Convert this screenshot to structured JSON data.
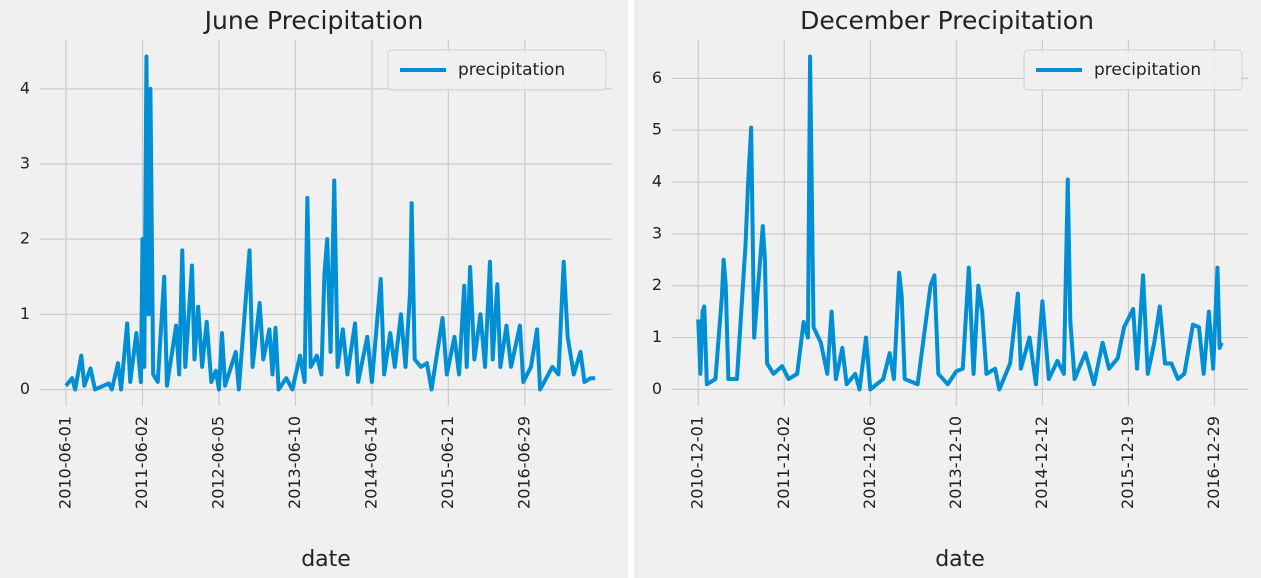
{
  "chart_data": [
    {
      "type": "line",
      "title": "June Precipitation",
      "xlabel": "date",
      "grid": true,
      "legend": "upper right",
      "xlim": [
        -85,
        1785
      ],
      "ylim": [
        -0.22,
        4.65
      ],
      "xticks": [
        {
          "value": 0,
          "label": "2010-06-01"
        },
        {
          "value": 250,
          "label": "2011-06-02"
        },
        {
          "value": 500,
          "label": "2012-06-05"
        },
        {
          "value": 750,
          "label": "2013-06-10"
        },
        {
          "value": 1000,
          "label": "2014-06-14"
        },
        {
          "value": 1250,
          "label": "2015-06-21"
        },
        {
          "value": 1500,
          "label": "2016-06-29"
        }
      ],
      "yticks": [
        0,
        1,
        2,
        3,
        4
      ],
      "x": [
        0,
        20,
        30,
        50,
        60,
        80,
        95,
        140,
        150,
        170,
        180,
        200,
        210,
        230,
        245,
        250,
        256,
        263,
        270,
        276,
        285,
        300,
        321,
        330,
        360,
        370,
        380,
        390,
        412,
        420,
        432,
        445,
        460,
        475,
        490,
        500,
        510,
        520,
        555,
        565,
        600,
        610,
        633,
        645,
        665,
        675,
        685,
        695,
        720,
        740,
        765,
        780,
        789,
        800,
        820,
        835,
        845,
        854,
        865,
        877,
        888,
        905,
        920,
        945,
        955,
        985,
        1000,
        1029,
        1040,
        1060,
        1075,
        1095,
        1110,
        1125,
        1130,
        1140,
        1160,
        1180,
        1195,
        1231,
        1245,
        1270,
        1285,
        1302,
        1310,
        1321,
        1335,
        1355,
        1370,
        1386,
        1395,
        1410,
        1420,
        1440,
        1455,
        1484,
        1495,
        1520,
        1540,
        1550,
        1590,
        1610,
        1627,
        1640,
        1660,
        1682,
        1695,
        1715,
        1730
      ],
      "series": [
        {
          "name": "precipitation",
          "color": "#008fd5",
          "values": [
            0.05,
            0.15,
            0,
            0.45,
            0.05,
            0.28,
            0,
            0.08,
            0,
            0.35,
            0,
            0.88,
            0.1,
            0.75,
            0.1,
            2.0,
            0.3,
            4.43,
            1.0,
            4.0,
            0.2,
            0.1,
            1.5,
            0.05,
            0.85,
            0.2,
            1.85,
            0.3,
            1.65,
            0.4,
            1.1,
            0.3,
            0.9,
            0.1,
            0.25,
            0,
            0.75,
            0.05,
            0.5,
            0,
            1.85,
            0.3,
            1.15,
            0.4,
            0.8,
            0.2,
            0.82,
            0,
            0.15,
            0,
            0.45,
            0.1,
            2.55,
            0.3,
            0.45,
            0.2,
            1.55,
            2.0,
            0.5,
            2.78,
            0.3,
            0.8,
            0.2,
            0.88,
            0.1,
            0.7,
            0.1,
            1.47,
            0.2,
            0.75,
            0.3,
            1.0,
            0.3,
            1.3,
            2.48,
            0.4,
            0.3,
            0.35,
            0,
            0.95,
            0.2,
            0.7,
            0.2,
            1.38,
            0.3,
            1.63,
            0.4,
            1.0,
            0.3,
            1.7,
            0.4,
            1.4,
            0.3,
            0.85,
            0.3,
            0.85,
            0.1,
            0.3,
            0.8,
            0,
            0.3,
            0.2,
            1.7,
            0.7,
            0.2,
            0.5,
            0.1,
            0.15,
            0.15
          ]
        }
      ]
    },
    {
      "type": "line",
      "title": "December Precipitation",
      "xlabel": "date",
      "grid": true,
      "legend": "upper right",
      "xlim": [
        -61,
        1278
      ],
      "ylim": [
        -0.32,
        6.74
      ],
      "xticks": [
        {
          "value": 0,
          "label": "2010-12-01"
        },
        {
          "value": 200,
          "label": "2011-12-02"
        },
        {
          "value": 400,
          "label": "2012-12-06"
        },
        {
          "value": 600,
          "label": "2013-12-10"
        },
        {
          "value": 800,
          "label": "2014-12-12"
        },
        {
          "value": 1000,
          "label": "2015-12-19"
        },
        {
          "value": 1200,
          "label": "2016-12-29"
        }
      ],
      "yticks": [
        0,
        1,
        2,
        3,
        4,
        5,
        6
      ],
      "x": [
        0,
        5,
        10,
        14,
        20,
        40,
        55,
        59,
        64,
        70,
        90,
        110,
        116,
        123,
        130,
        150,
        155,
        160,
        175,
        195,
        210,
        230,
        245,
        255,
        260,
        268,
        285,
        300,
        310,
        320,
        335,
        345,
        365,
        375,
        390,
        400,
        430,
        445,
        455,
        467,
        473,
        480,
        510,
        540,
        549,
        558,
        580,
        600,
        615,
        629,
        640,
        651,
        660,
        670,
        690,
        700,
        725,
        743,
        750,
        770,
        785,
        800,
        806,
        815,
        835,
        850,
        859,
        865,
        875,
        900,
        920,
        940,
        955,
        975,
        990,
        1011,
        1020,
        1034,
        1045,
        1060,
        1073,
        1085,
        1100,
        1115,
        1130,
        1150,
        1164,
        1175,
        1187,
        1197,
        1207,
        1212,
        1217
      ],
      "series": [
        {
          "name": "precipitation",
          "color": "#008fd5",
          "values": [
            1.35,
            0.3,
            1.5,
            1.6,
            0.1,
            0.2,
            1.8,
            2.5,
            2.0,
            0.2,
            0.2,
            2.8,
            4.0,
            5.05,
            1.0,
            3.15,
            2.5,
            0.5,
            0.3,
            0.45,
            0.2,
            0.3,
            1.3,
            1.0,
            6.42,
            1.2,
            0.9,
            0.3,
            1.5,
            0.2,
            0.8,
            0.1,
            0.3,
            0,
            1.0,
            0,
            0.2,
            0.7,
            0.2,
            2.25,
            1.8,
            0.2,
            0.1,
            2.0,
            2.2,
            0.3,
            0.1,
            0.35,
            0.4,
            2.35,
            0.3,
            2.0,
            1.5,
            0.3,
            0.4,
            0,
            0.5,
            1.85,
            0.4,
            1.0,
            0.1,
            1.7,
            1.1,
            0.2,
            0.55,
            0.3,
            4.05,
            1.3,
            0.2,
            0.7,
            0.1,
            0.9,
            0.4,
            0.6,
            1.2,
            1.55,
            0.4,
            2.2,
            0.3,
            0.9,
            1.6,
            0.5,
            0.5,
            0.2,
            0.3,
            1.25,
            1.2,
            0.3,
            1.5,
            0.4,
            2.35,
            0.8,
            0.9
          ]
        }
      ]
    }
  ]
}
